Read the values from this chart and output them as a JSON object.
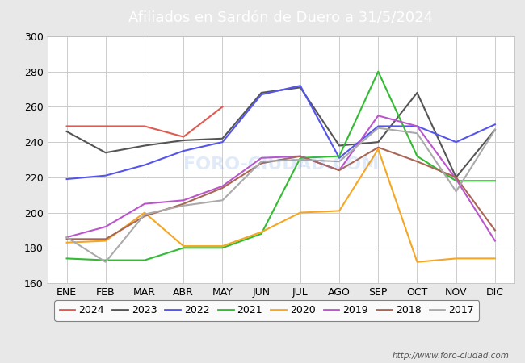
{
  "title": "Afiliados en Sardón de Duero a 31/5/2024",
  "months": [
    "ENE",
    "FEB",
    "MAR",
    "ABR",
    "MAY",
    "JUN",
    "JUL",
    "AGO",
    "SEP",
    "OCT",
    "NOV",
    "DIC"
  ],
  "ylim": [
    160,
    300
  ],
  "yticks": [
    160,
    180,
    200,
    220,
    240,
    260,
    280,
    300
  ],
  "series": {
    "2024": {
      "color": "#e05a52",
      "values": [
        249,
        249,
        249,
        243,
        260,
        null,
        null,
        null,
        null,
        null,
        null,
        null
      ]
    },
    "2023": {
      "color": "#555555",
      "values": [
        246,
        234,
        238,
        241,
        242,
        268,
        271,
        238,
        240,
        268,
        220,
        247
      ]
    },
    "2022": {
      "color": "#5555ee",
      "values": [
        219,
        221,
        227,
        235,
        240,
        267,
        272,
        231,
        249,
        249,
        240,
        250
      ]
    },
    "2021": {
      "color": "#33bb33",
      "values": [
        174,
        173,
        173,
        180,
        180,
        188,
        231,
        232,
        280,
        232,
        218,
        218
      ]
    },
    "2020": {
      "color": "#f5a623",
      "values": [
        183,
        184,
        200,
        181,
        181,
        189,
        200,
        201,
        236,
        172,
        174,
        174
      ]
    },
    "2019": {
      "color": "#bb55cc",
      "values": [
        186,
        192,
        205,
        207,
        215,
        231,
        232,
        224,
        255,
        249,
        219,
        184
      ]
    },
    "2018": {
      "color": "#aa6655",
      "values": [
        185,
        185,
        198,
        205,
        214,
        228,
        232,
        224,
        237,
        229,
        220,
        190
      ]
    },
    "2017": {
      "color": "#aaaaaa",
      "values": [
        186,
        172,
        199,
        204,
        207,
        229,
        230,
        229,
        248,
        245,
        212,
        247
      ]
    }
  },
  "title_fontsize": 13,
  "tick_fontsize": 9,
  "legend_fontsize": 9,
  "fig_background": "#e8e8e8",
  "plot_background": "#ffffff",
  "grid_color": "#cccccc",
  "header_color": "#5b8dd9",
  "header_text_color": "#ffffff",
  "watermark": "http://www.foro-ciudad.com",
  "watermark_overlay": "FORO-CIUDAD.COM",
  "year_order": [
    "2024",
    "2023",
    "2022",
    "2021",
    "2020",
    "2019",
    "2018",
    "2017"
  ]
}
